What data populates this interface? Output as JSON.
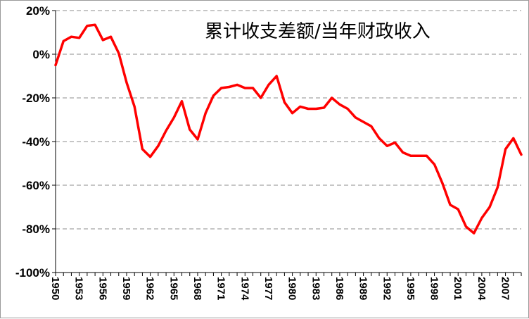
{
  "chart_data": {
    "type": "line",
    "title": "累计收支差额/当年财政收入",
    "xlabel": "",
    "ylabel": "",
    "ylim": [
      -100,
      20
    ],
    "y_ticks": [
      20,
      0,
      -20,
      -40,
      -60,
      -80,
      -100
    ],
    "y_tick_labels": [
      "20%",
      "0%",
      "-20%",
      "-40%",
      "-60%",
      "-80%",
      "-100%"
    ],
    "x_tick_labels": [
      "1950",
      "1953",
      "1956",
      "1959",
      "1962",
      "1965",
      "1968",
      "1971",
      "1974",
      "1977",
      "1980",
      "1983",
      "1986",
      "1989",
      "1992",
      "1995",
      "1998",
      "2001",
      "2004",
      "2007"
    ],
    "grid": "horizontal dashed",
    "legend": "none",
    "series": [
      {
        "color": "#ff0000",
        "x": [
          1950,
          1951,
          1952,
          1953,
          1954,
          1955,
          1956,
          1957,
          1958,
          1959,
          1960,
          1961,
          1962,
          1963,
          1964,
          1965,
          1966,
          1967,
          1968,
          1969,
          1970,
          1971,
          1972,
          1973,
          1974,
          1975,
          1976,
          1977,
          1978,
          1979,
          1980,
          1981,
          1982,
          1983,
          1984,
          1985,
          1986,
          1987,
          1988,
          1989,
          1990,
          1991,
          1992,
          1993,
          1994,
          1995,
          1996,
          1997,
          1998,
          1999,
          2000,
          2001,
          2002,
          2003,
          2004,
          2005,
          2006,
          2007,
          2008,
          2009
        ],
        "values": [
          -5,
          6,
          8,
          7.5,
          13,
          13.5,
          6.5,
          8,
          0.5,
          -13,
          -24,
          -43.5,
          -47,
          -42,
          -35,
          -29,
          -21.5,
          -34.5,
          -39,
          -27,
          -19,
          -15.5,
          -15,
          -14,
          -15.5,
          -15.5,
          -20,
          -14,
          -10,
          -22,
          -27,
          -24,
          -25,
          -25,
          -24.5,
          -20,
          -23,
          -25,
          -29,
          -31,
          -33,
          -38.5,
          -42,
          -40.5,
          -45,
          -46.5,
          -46.5,
          -46.5,
          -50.5,
          -59,
          -69,
          -71,
          -79,
          -82,
          -75,
          -70,
          -61,
          -43.5,
          -38.5,
          -46
        ]
      }
    ]
  }
}
